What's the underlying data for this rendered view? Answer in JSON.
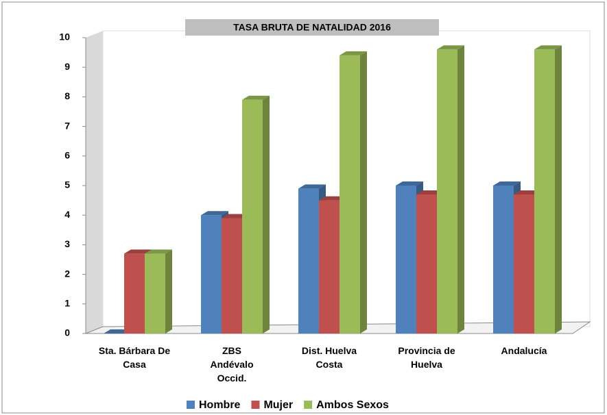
{
  "chart_data": {
    "type": "bar",
    "title": "TASA BRUTA DE NATALIDAD 2016",
    "categories": [
      "Sta. Bárbara De Casa",
      "ZBS Andévalo Occid.",
      "Dist. Huelva Costa",
      "Provincia de Huelva",
      "Andalucía"
    ],
    "series": [
      {
        "name": "Hombre",
        "color": "#4f81bd",
        "values": [
          0,
          4.0,
          4.9,
          5.0,
          5.0
        ]
      },
      {
        "name": "Mujer",
        "color": "#c0504d",
        "values": [
          2.7,
          3.9,
          4.5,
          4.7,
          4.7
        ]
      },
      {
        "name": "Ambos Sexos",
        "color": "#9bbb59",
        "values": [
          2.7,
          7.9,
          9.4,
          9.6,
          9.6
        ]
      }
    ],
    "ylim": [
      0,
      10
    ],
    "yticks": [
      0,
      1,
      2,
      3,
      4,
      5,
      6,
      7,
      8,
      9,
      10
    ],
    "grid": false,
    "legend": "bottom"
  }
}
